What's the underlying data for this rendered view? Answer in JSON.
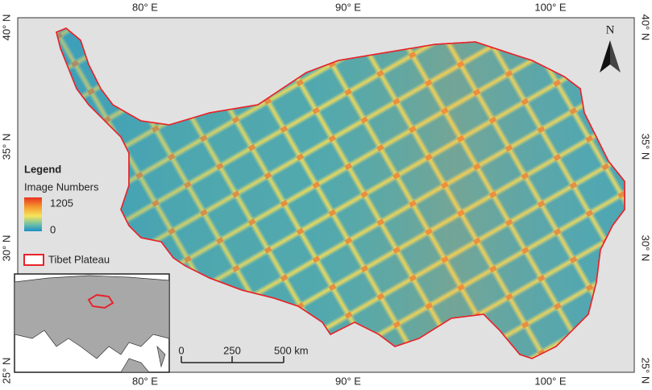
{
  "map": {
    "x_labels": [
      "80° E",
      "90° E",
      "100° E"
    ],
    "y_labels": [
      "40° N",
      "35° N",
      "30° N",
      "25° N"
    ],
    "legend": {
      "title": "Legend",
      "field": "Image Numbers",
      "max": "1205",
      "min": "0",
      "layer": "Tibet Plateau"
    },
    "scale_bar": [
      "0",
      "250",
      "500 km"
    ],
    "north": "N"
  }
}
